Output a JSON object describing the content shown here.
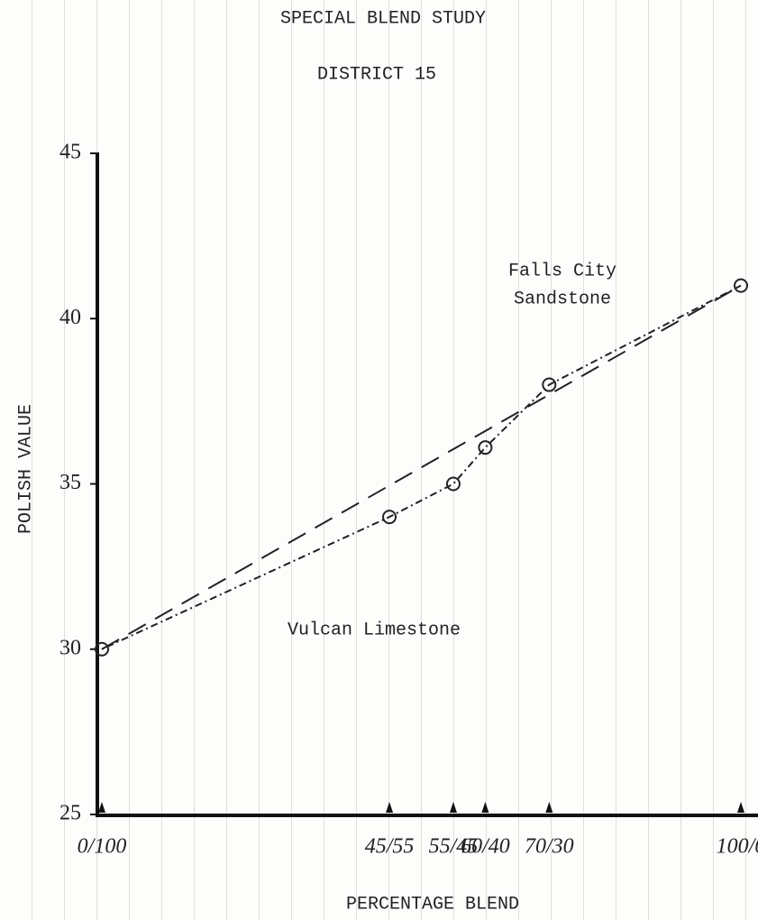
{
  "chart_data": {
    "type": "line",
    "title": "SPECIAL BLEND STUDY",
    "subtitle": "DISTRICT 15",
    "x_label": "PERCENTAGE BLEND",
    "y_label": "POLISH VALUE",
    "annotations": [
      "Falls City",
      "Sandstone",
      "Vulcan Limestone"
    ],
    "series": [
      {
        "x": [
          0,
          45,
          55,
          60,
          70,
          100
        ],
        "values": [
          30,
          34,
          35,
          36.1,
          38,
          41
        ],
        "color": "#222222",
        "dash": "2 4 8 4"
      },
      {
        "x": [
          0,
          100
        ],
        "values": [
          30,
          41
        ],
        "color": "#222222",
        "dash": "22 12"
      }
    ],
    "xlim": [
      0,
      100
    ],
    "xticks": [
      {
        "value": 0,
        "label": "0/100"
      },
      {
        "value": 45,
        "label": "45/55"
      },
      {
        "value": 55,
        "label": "55/45"
      },
      {
        "value": 60,
        "label": "60/40"
      },
      {
        "value": 70,
        "label": "70/30"
      },
      {
        "value": 100,
        "label": "100/0"
      }
    ],
    "ylim": [
      25,
      45
    ],
    "yticks": [
      25,
      30,
      35,
      40,
      45
    ]
  }
}
